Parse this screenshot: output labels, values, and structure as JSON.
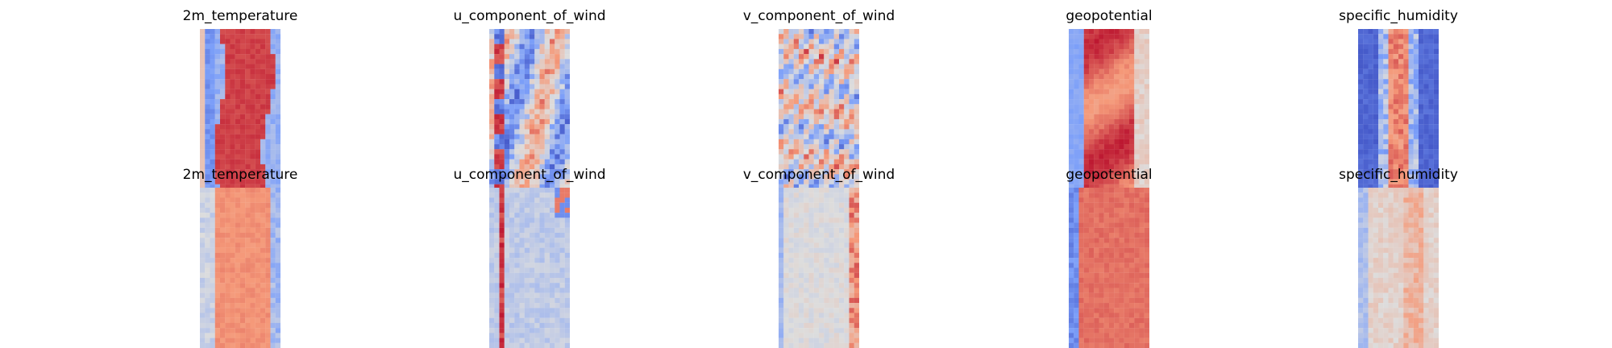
{
  "chart_data": [
    {
      "type": "heatmap",
      "title": "2m_temperature",
      "row": 0,
      "col": 0,
      "pattern": "band",
      "colormap": "coolwarm",
      "axes": "off"
    },
    {
      "type": "heatmap",
      "title": "u_component_of_wind",
      "row": 0,
      "col": 1,
      "pattern": "streaks",
      "colormap": "coolwarm",
      "axes": "off"
    },
    {
      "type": "heatmap",
      "title": "v_component_of_wind",
      "row": 0,
      "col": 2,
      "pattern": "eddies",
      "colormap": "coolwarm",
      "axes": "off"
    },
    {
      "type": "heatmap",
      "title": "geopotential",
      "row": 0,
      "col": 3,
      "pattern": "geo",
      "colormap": "coolwarm",
      "axes": "off"
    },
    {
      "type": "heatmap",
      "title": "specific_humidity",
      "row": 0,
      "col": 4,
      "pattern": "humid",
      "colormap": "coolwarm",
      "axes": "off"
    },
    {
      "type": "heatmap",
      "title": "2m_temperature",
      "row": 1,
      "col": 0,
      "pattern": "band_err",
      "colormap": "coolwarm",
      "axes": "off"
    },
    {
      "type": "heatmap",
      "title": "u_component_of_wind",
      "row": 1,
      "col": 1,
      "pattern": "noise_u",
      "colormap": "coolwarm",
      "axes": "off"
    },
    {
      "type": "heatmap",
      "title": "v_component_of_wind",
      "row": 1,
      "col": 2,
      "pattern": "noise_v",
      "colormap": "coolwarm",
      "axes": "off"
    },
    {
      "type": "heatmap",
      "title": "geopotential",
      "row": 1,
      "col": 3,
      "pattern": "geo_err",
      "colormap": "coolwarm",
      "axes": "off"
    },
    {
      "type": "heatmap",
      "title": "specific_humidity",
      "row": 1,
      "col": 4,
      "pattern": "noise_q",
      "colormap": "coolwarm",
      "axes": "off"
    }
  ]
}
